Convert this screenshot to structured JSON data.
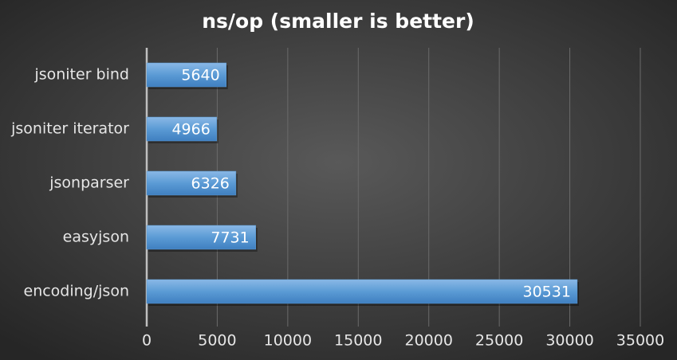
{
  "chart_data": {
    "type": "bar",
    "orientation": "horizontal",
    "title": "ns/op (smaller is better)",
    "categories": [
      "jsoniter bind",
      "jsoniter iterator",
      "jsonparser",
      "easyjson",
      "encoding/json"
    ],
    "values": [
      5640,
      4966,
      6326,
      7731,
      30531
    ],
    "color": "#5b9bd5",
    "xlim": [
      0,
      35000
    ],
    "xticks": [
      0,
      5000,
      10000,
      15000,
      20000,
      25000,
      30000,
      35000
    ],
    "grid": true
  }
}
